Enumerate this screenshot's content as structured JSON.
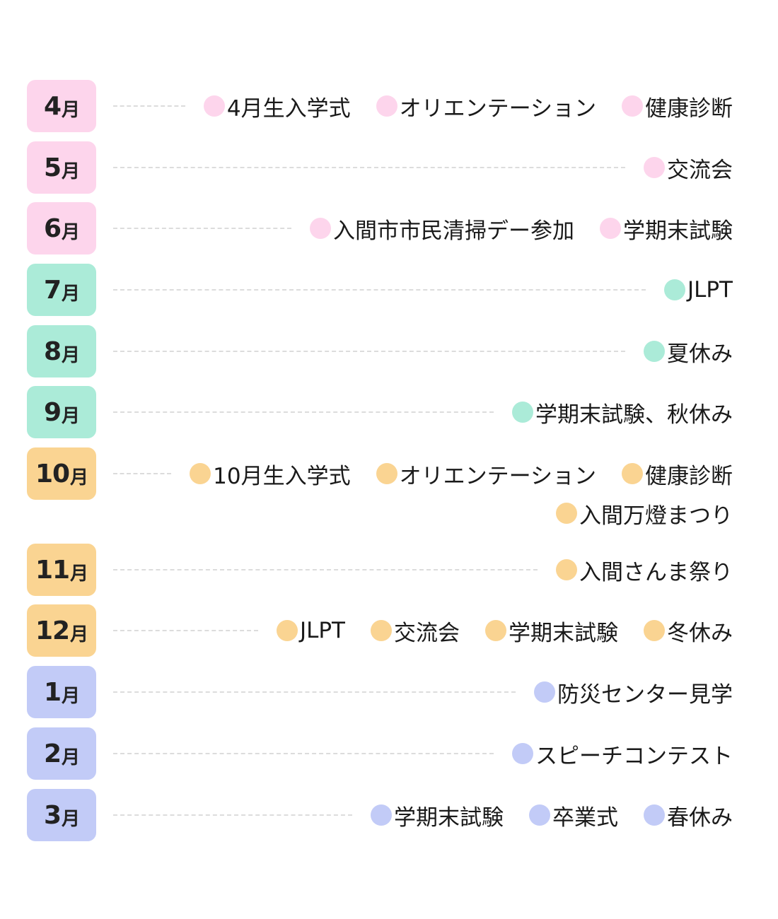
{
  "colors": {
    "spring": "#fdd5ec",
    "summer": "#abebd8",
    "autumn": "#fad492",
    "winter": "#c2cbf7"
  },
  "months": [
    {
      "num": "4",
      "unit": "月",
      "color": "#fdd5ec",
      "events": [
        "4月生入学式",
        "オリエンテーション",
        "健康診断"
      ],
      "events2": []
    },
    {
      "num": "5",
      "unit": "月",
      "color": "#fdd5ec",
      "events": [
        "交流会"
      ],
      "events2": []
    },
    {
      "num": "6",
      "unit": "月",
      "color": "#fdd5ec",
      "events": [
        "入間市市民清掃デー参加",
        "学期末試験"
      ],
      "events2": []
    },
    {
      "num": "7",
      "unit": "月",
      "color": "#abebd8",
      "events": [
        "JLPT"
      ],
      "events2": []
    },
    {
      "num": "8",
      "unit": "月",
      "color": "#abebd8",
      "events": [
        "夏休み"
      ],
      "events2": []
    },
    {
      "num": "9",
      "unit": "月",
      "color": "#abebd8",
      "events": [
        "学期末試験、秋休み"
      ],
      "events2": []
    },
    {
      "num": "10",
      "unit": "月",
      "color": "#fad492",
      "events": [
        "10月生入学式",
        "オリエンテーション",
        "健康診断"
      ],
      "events2": [
        "入間万燈まつり"
      ]
    },
    {
      "num": "11",
      "unit": "月",
      "color": "#fad492",
      "events": [
        "入間さんま祭り"
      ],
      "events2": []
    },
    {
      "num": "12",
      "unit": "月",
      "color": "#fad492",
      "events": [
        "JLPT",
        "交流会",
        "学期末試験",
        "冬休み"
      ],
      "events2": []
    },
    {
      "num": "1",
      "unit": "月",
      "color": "#c2cbf7",
      "events": [
        "防災センター見学"
      ],
      "events2": []
    },
    {
      "num": "2",
      "unit": "月",
      "color": "#c2cbf7",
      "events": [
        "スピーチコンテスト"
      ],
      "events2": []
    },
    {
      "num": "3",
      "unit": "月",
      "color": "#c2cbf7",
      "events": [
        "学期末試験",
        "卒業式",
        "春休み"
      ],
      "events2": []
    }
  ]
}
